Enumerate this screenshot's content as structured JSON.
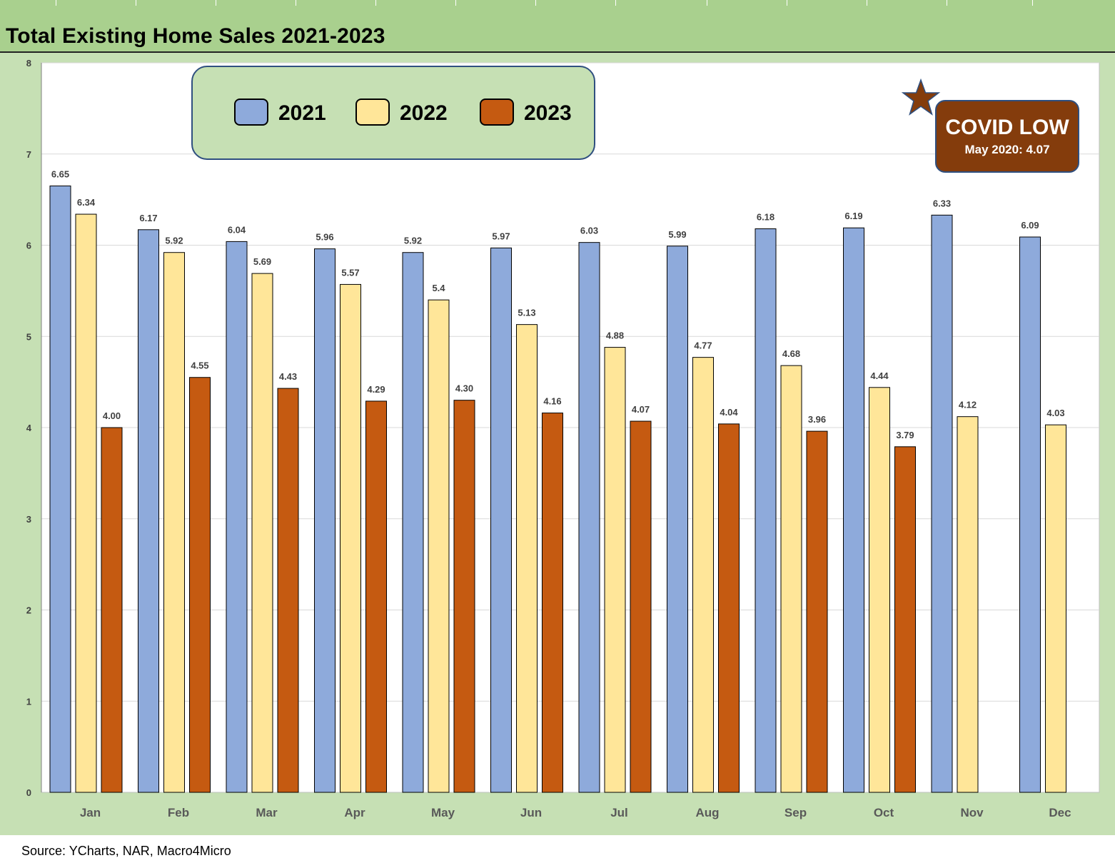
{
  "header": {
    "title": "Total Existing Home Sales 2021-2023"
  },
  "footer": {
    "source": "Source: YCharts, NAR, Macro4Micro"
  },
  "annotation": {
    "title": "COVID LOW",
    "subtitle": "May 2020: 4.07",
    "icon": "star-icon",
    "background_color": "#843c0c",
    "star_color": "#843c0c"
  },
  "legend": [
    {
      "label": "2021",
      "color": "#8eaadb"
    },
    {
      "label": "2022",
      "color": "#ffe699"
    },
    {
      "label": "2023",
      "color": "#c55a11"
    }
  ],
  "chart_data": {
    "type": "bar",
    "title": "Total Existing Home Sales 2021-2023",
    "categories": [
      "Jan",
      "Feb",
      "Mar",
      "Apr",
      "May",
      "Jun",
      "Jul",
      "Aug",
      "Sep",
      "Oct",
      "Nov",
      "Dec"
    ],
    "series": [
      {
        "name": "2021",
        "color": "#8eaadb",
        "values": [
          6.65,
          6.17,
          6.04,
          5.96,
          5.92,
          5.97,
          6.03,
          5.99,
          6.18,
          6.19,
          6.33,
          6.09
        ],
        "labels": [
          "6.65",
          "6.17",
          "6.04",
          "5.96",
          "5.92",
          "5.97",
          "6.03",
          "5.99",
          "6.18",
          "6.19",
          "6.33",
          "6.09"
        ]
      },
      {
        "name": "2022",
        "color": "#ffe699",
        "values": [
          6.34,
          5.92,
          5.69,
          5.57,
          5.4,
          5.13,
          4.88,
          4.77,
          4.68,
          4.44,
          4.12,
          4.03
        ],
        "labels": [
          "6.34",
          "5.92",
          "5.69",
          "5.57",
          "5.4",
          "5.13",
          "4.88",
          "4.77",
          "4.68",
          "4.44",
          "4.12",
          "4.03"
        ]
      },
      {
        "name": "2023",
        "color": "#c55a11",
        "values": [
          4.0,
          4.55,
          4.43,
          4.29,
          4.3,
          4.16,
          4.07,
          4.04,
          3.96,
          3.79,
          null,
          null
        ],
        "labels": [
          "4.00",
          "4.55",
          "4.43",
          "4.29",
          "4.30",
          "4.16",
          "4.07",
          "4.04",
          "3.96",
          "3.79",
          null,
          null
        ]
      }
    ],
    "yticks": [
      "0",
      "1",
      "2",
      "3",
      "4",
      "5",
      "6",
      "7",
      "8"
    ],
    "ylim": [
      0,
      8
    ],
    "grid": true,
    "legend_position": "top-left"
  }
}
